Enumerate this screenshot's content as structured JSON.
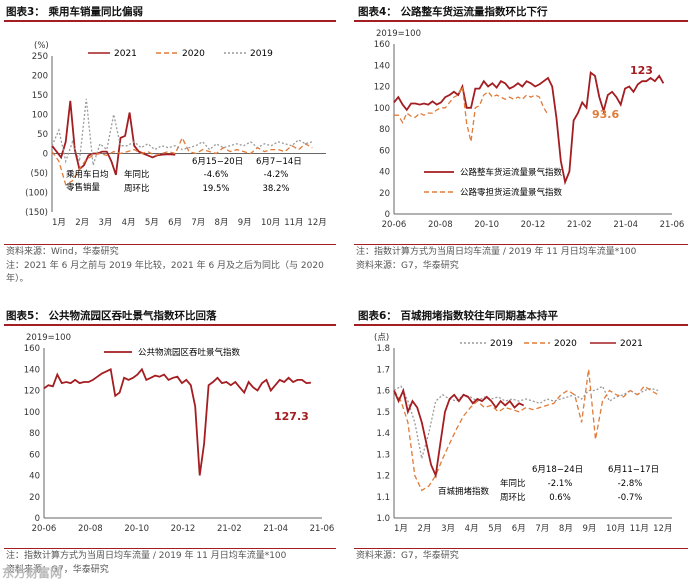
{
  "charts": [
    {
      "id": "c3",
      "title": "图表3：  乘用车销量同比偏弱",
      "type": "line",
      "unit_label": "(%)",
      "yticks": [
        "250",
        "200",
        "150",
        "100",
        "50",
        "0",
        "(50)",
        "(100)",
        "(150)"
      ],
      "ylim": [
        -150,
        250
      ],
      "months": [
        "1月",
        "2月",
        "3月",
        "4月",
        "5月",
        "6月",
        "7月",
        "8月",
        "9月",
        "10月",
        "11月",
        "12月"
      ],
      "legend": [
        "2021",
        "2020",
        "2019"
      ],
      "series": [
        {
          "name": "2021",
          "color": "#a31d21",
          "x": [
            0,
            0.2,
            0.4,
            0.6,
            0.8,
            1.0,
            1.2,
            1.4,
            1.6,
            1.8,
            2.0,
            2.2,
            2.4,
            2.6,
            2.8,
            3.0,
            3.2,
            3.4,
            3.6,
            3.8,
            4.0,
            4.2,
            4.4,
            4.6,
            4.8,
            5.0,
            5.2,
            5.4
          ],
          "y": [
            20,
            5,
            -10,
            30,
            135,
            10,
            -40,
            -30,
            -5,
            0,
            0,
            5,
            5,
            -20,
            -55,
            40,
            45,
            105,
            20,
            5,
            0,
            -5,
            -10,
            -5,
            -3,
            -2,
            -2,
            -3
          ]
        },
        {
          "name": "2020",
          "color": "#e07b39",
          "x": [
            0,
            0.3,
            0.6,
            0.9,
            1.2,
            1.5,
            1.8,
            2.1,
            2.4,
            2.7,
            3.0,
            3.3,
            3.6,
            3.9,
            4.2,
            4.5,
            4.8,
            5.1,
            5.4,
            5.7,
            6.0,
            6.3,
            6.6,
            6.9,
            7.2,
            7.5,
            7.8,
            8.1,
            8.4,
            8.7,
            9.0,
            9.3,
            9.6,
            9.9,
            10.2,
            10.5,
            10.8,
            11.1,
            11.4
          ],
          "y": [
            5,
            -20,
            -80,
            -70,
            -40,
            -15,
            -5,
            0,
            -5,
            5,
            0,
            5,
            10,
            0,
            5,
            -5,
            0,
            5,
            0,
            40,
            5,
            0,
            10,
            5,
            0,
            15,
            5,
            10,
            5,
            0,
            15,
            5,
            10,
            10,
            5,
            20,
            10,
            25,
            15
          ]
        },
        {
          "name": "2019",
          "color": "#9a9a9a",
          "x": [
            0,
            0.3,
            0.6,
            0.9,
            1.2,
            1.5,
            1.8,
            2.1,
            2.4,
            2.7,
            3.0,
            3.3,
            3.6,
            3.9,
            4.2,
            4.5,
            4.8,
            5.1,
            5.4,
            5.7,
            6.0,
            6.3,
            6.6,
            6.9,
            7.2,
            7.5,
            7.8,
            8.1,
            8.4,
            8.7,
            9.0,
            9.3,
            9.6,
            9.9,
            10.2,
            10.5,
            10.8,
            11.1,
            11.4
          ],
          "y": [
            20,
            60,
            -20,
            30,
            -20,
            140,
            -30,
            25,
            10,
            100,
            20,
            20,
            30,
            15,
            25,
            10,
            20,
            15,
            20,
            10,
            15,
            20,
            30,
            10,
            25,
            15,
            20,
            25,
            20,
            30,
            15,
            25,
            20,
            30,
            25,
            20,
            35,
            25,
            30
          ]
        }
      ],
      "annotation": {
        "rows": [
          {
            "label": "乘用车日均\n零售销量",
            "sub": "年同比",
            "a": "-4.6%",
            "b": "-4.2%"
          },
          {
            "label": "",
            "sub": "周环比",
            "a": "19.5%",
            "b": "38.2%"
          }
        ],
        "col_a": "6月15−20日",
        "col_b": "6月7−14日"
      },
      "source": "资料来源：Wind，华泰研究",
      "note": "注：2021 年 6 月之前与 2019 年比较，2021 年 6 月及之后为同比（与 2020 年）。"
    },
    {
      "id": "c4",
      "title": "图表4：  公路整车货运流量指数环比下行",
      "type": "line",
      "unit_label": "2019=100",
      "yticks": [
        "160",
        "140",
        "120",
        "100",
        "80",
        "60",
        "40",
        "20",
        "0"
      ],
      "ylim": [
        0,
        160
      ],
      "xticks": [
        "20-06",
        "20-08",
        "20-10",
        "20-12",
        "21-02",
        "21-04",
        "21-06"
      ],
      "series": [
        {
          "name": "公路整车货运流量景气指数",
          "color": "#a31d21",
          "x": [
            0,
            0.2,
            0.4,
            0.6,
            0.8,
            1.0,
            1.2,
            1.4,
            1.6,
            1.8,
            2.0,
            2.2,
            2.4,
            2.6,
            2.8,
            3.0,
            3.2,
            3.4,
            3.6,
            3.8,
            4.0,
            4.2,
            4.4,
            4.6,
            4.8,
            5.0,
            5.2,
            5.4,
            5.6,
            5.8,
            6.0,
            6.2,
            6.4,
            6.6,
            6.8,
            7.0,
            7.2,
            7.4,
            7.6,
            7.8,
            8.0,
            8.2,
            8.4,
            8.6,
            8.8,
            9.0,
            9.2,
            9.4,
            9.6,
            9.8,
            10.0,
            10.2,
            10.4,
            10.6,
            10.8,
            11.0,
            11.2,
            11.4,
            11.6,
            11.8,
            12.0,
            12.2,
            12.4,
            12.6
          ],
          "y": [
            105,
            110,
            103,
            98,
            104,
            104,
            103,
            104,
            103,
            106,
            103,
            105,
            110,
            112,
            115,
            112,
            120,
            100,
            100,
            118,
            118,
            125,
            120,
            123,
            119,
            125,
            123,
            118,
            120,
            123,
            120,
            125,
            123,
            120,
            122,
            125,
            128,
            120,
            90,
            50,
            30,
            40,
            88,
            95,
            105,
            100,
            133,
            130,
            110,
            97,
            112,
            115,
            110,
            103,
            118,
            120,
            115,
            122,
            125,
            125,
            128,
            125,
            130,
            123
          ]
        },
        {
          "name": "公路零担货运流量景气指数",
          "color": "#e07b39",
          "x": [
            0,
            0.2,
            0.4,
            0.6,
            0.8,
            1.0,
            1.2,
            1.4,
            1.6,
            1.8,
            2.0,
            2.2,
            2.4,
            2.6,
            2.8,
            3.0,
            3.2,
            3.4,
            3.6,
            3.8,
            4.0,
            4.2,
            4.4,
            4.6,
            4.8,
            5.0,
            5.2,
            5.4,
            5.6,
            5.8,
            6.0,
            6.2,
            6.4,
            6.6,
            6.8,
            7.0,
            7.2
          ],
          "y": [
            93,
            93,
            86,
            95,
            92,
            91,
            95,
            93,
            95,
            95,
            98,
            100,
            100,
            105,
            110,
            112,
            120,
            85,
            68,
            100,
            102,
            112,
            115,
            110,
            112,
            110,
            108,
            110,
            108,
            110,
            108,
            112,
            110,
            112,
            110,
            100,
            93.6
          ]
        }
      ],
      "labels": {
        "last_main": "123",
        "last_second": "93.6"
      },
      "source": "注：指数计算方式为当周日均车流量 / 2019 年 11 月日均车流量*100",
      "note": "资料来源：G7，华泰研究"
    },
    {
      "id": "c5",
      "title": "图表5：  公共物流园区吞吐景气指数环比回落",
      "type": "line",
      "unit_label": "2019=100",
      "yticks": [
        "160",
        "140",
        "120",
        "100",
        "80",
        "60",
        "40",
        "20",
        "0"
      ],
      "ylim": [
        0,
        160
      ],
      "xticks": [
        "20-06",
        "20-08",
        "20-10",
        "20-12",
        "21-02",
        "21-04",
        "21-06"
      ],
      "series": [
        {
          "name": "公共物流园区吞吐景气指数",
          "color": "#a31d21",
          "x": [
            0,
            0.2,
            0.4,
            0.6,
            0.8,
            1.0,
            1.2,
            1.4,
            1.6,
            1.8,
            2.0,
            2.2,
            2.4,
            2.6,
            2.8,
            3.0,
            3.2,
            3.4,
            3.6,
            3.8,
            4.0,
            4.2,
            4.4,
            4.6,
            4.8,
            5.0,
            5.2,
            5.4,
            5.6,
            5.8,
            6.0,
            6.2,
            6.4,
            6.6,
            6.8,
            7.0,
            7.2,
            7.4,
            7.6,
            7.8,
            8.0,
            8.2,
            8.4,
            8.6,
            8.8,
            9.0,
            9.2,
            9.4,
            9.6,
            9.8,
            10.0,
            10.2,
            10.4,
            10.6,
            10.8,
            11.0,
            11.2,
            11.4,
            11.6,
            11.8,
            12.0
          ],
          "y": [
            122,
            125,
            124,
            135,
            127,
            128,
            127,
            130,
            127,
            128,
            128,
            130,
            133,
            136,
            138,
            140,
            115,
            118,
            132,
            130,
            132,
            135,
            140,
            130,
            132,
            134,
            133,
            135,
            130,
            132,
            133,
            127,
            130,
            125,
            105,
            40,
            70,
            125,
            128,
            132,
            127,
            128,
            125,
            128,
            123,
            118,
            128,
            123,
            120,
            127,
            130,
            120,
            125,
            130,
            128,
            132,
            128,
            130,
            130,
            127,
            127.3
          ]
        }
      ],
      "labels": {
        "last_main": "127.3"
      },
      "source": "注：指数计算方式为当周日均车流量 / 2019 年 11 月日均车流量*100",
      "note": "资料来源：G7，华泰研究"
    },
    {
      "id": "c6",
      "title": "图表6：  百城拥堵指数较往年同期基本持平",
      "type": "line",
      "unit_label": "(点)",
      "yticks": [
        "1.8",
        "1.7",
        "1.6",
        "1.5",
        "1.4",
        "1.3",
        "1.2",
        "1.1",
        "1.0"
      ],
      "ylim": [
        1.0,
        1.8
      ],
      "months": [
        "1月",
        "2月",
        "3月",
        "4月",
        "5月",
        "6月",
        "7月",
        "8月",
        "9月",
        "10月",
        "11月",
        "12月"
      ],
      "legend": [
        "2019",
        "2020",
        "2021"
      ],
      "series": [
        {
          "name": "2019",
          "color": "#9a9a9a",
          "x": [
            0,
            0.3,
            0.6,
            0.9,
            1.2,
            1.5,
            1.8,
            2.1,
            2.4,
            2.7,
            3.0,
            3.3,
            3.6,
            3.9,
            4.2,
            4.5,
            4.8,
            5.1,
            5.4,
            5.7,
            6.0,
            6.3,
            6.6,
            6.9,
            7.2,
            7.5,
            7.8,
            8.1,
            8.4,
            8.7,
            9.0,
            9.3,
            9.6,
            9.9,
            10.2,
            10.5,
            10.8,
            11.1,
            11.4
          ],
          "y": [
            1.6,
            1.62,
            1.55,
            1.45,
            1.28,
            1.4,
            1.55,
            1.58,
            1.56,
            1.55,
            1.58,
            1.57,
            1.55,
            1.57,
            1.56,
            1.57,
            1.55,
            1.56,
            1.55,
            1.56,
            1.55,
            1.54,
            1.56,
            1.55,
            1.56,
            1.57,
            1.58,
            1.56,
            1.6,
            1.6,
            1.62,
            1.55,
            1.57,
            1.58,
            1.6,
            1.58,
            1.6,
            1.61,
            1.6
          ]
        },
        {
          "name": "2020",
          "color": "#e07b39",
          "x": [
            0,
            0.3,
            0.6,
            0.9,
            1.2,
            1.5,
            1.8,
            2.1,
            2.4,
            2.7,
            3.0,
            3.3,
            3.6,
            3.9,
            4.2,
            4.5,
            4.8,
            5.1,
            5.4,
            5.7,
            6.0,
            6.3,
            6.6,
            6.9,
            7.2,
            7.5,
            7.8,
            8.1,
            8.4,
            8.7,
            9.0,
            9.3,
            9.6,
            9.9,
            10.2,
            10.5,
            10.8,
            11.1,
            11.4
          ],
          "y": [
            1.6,
            1.55,
            1.45,
            1.2,
            1.13,
            1.15,
            1.2,
            1.28,
            1.35,
            1.42,
            1.48,
            1.52,
            1.55,
            1.52,
            1.53,
            1.5,
            1.52,
            1.51,
            1.5,
            1.52,
            1.51,
            1.52,
            1.53,
            1.54,
            1.58,
            1.6,
            1.58,
            1.45,
            1.7,
            1.37,
            1.55,
            1.6,
            1.58,
            1.57,
            1.6,
            1.58,
            1.62,
            1.6,
            1.58
          ]
        },
        {
          "name": "2021",
          "color": "#a31d21",
          "x": [
            0,
            0.2,
            0.4,
            0.6,
            0.8,
            1.0,
            1.2,
            1.4,
            1.6,
            1.8,
            2.0,
            2.2,
            2.4,
            2.6,
            2.8,
            3.0,
            3.2,
            3.4,
            3.6,
            3.8,
            4.0,
            4.2,
            4.4,
            4.6,
            4.8,
            5.0,
            5.2,
            5.4,
            5.6
          ],
          "y": [
            1.6,
            1.55,
            1.6,
            1.5,
            1.55,
            1.52,
            1.45,
            1.35,
            1.25,
            1.2,
            1.35,
            1.5,
            1.56,
            1.58,
            1.55,
            1.58,
            1.57,
            1.54,
            1.56,
            1.55,
            1.57,
            1.55,
            1.52,
            1.55,
            1.53,
            1.55,
            1.52,
            1.54,
            1.53
          ]
        }
      ],
      "annotation": {
        "rows": [
          {
            "label": "百城拥堵指数",
            "sub": "年同比",
            "a": "-2.1%",
            "b": "-2.8%"
          },
          {
            "label": "",
            "sub": "周环比",
            "a": "0.6%",
            "b": "-0.7%"
          }
        ],
        "col_a": "6月18−24日",
        "col_b": "6月11−17日"
      },
      "source": "资料来源：G7，华泰研究",
      "note": ""
    }
  ],
  "watermark": "东方财富网"
}
